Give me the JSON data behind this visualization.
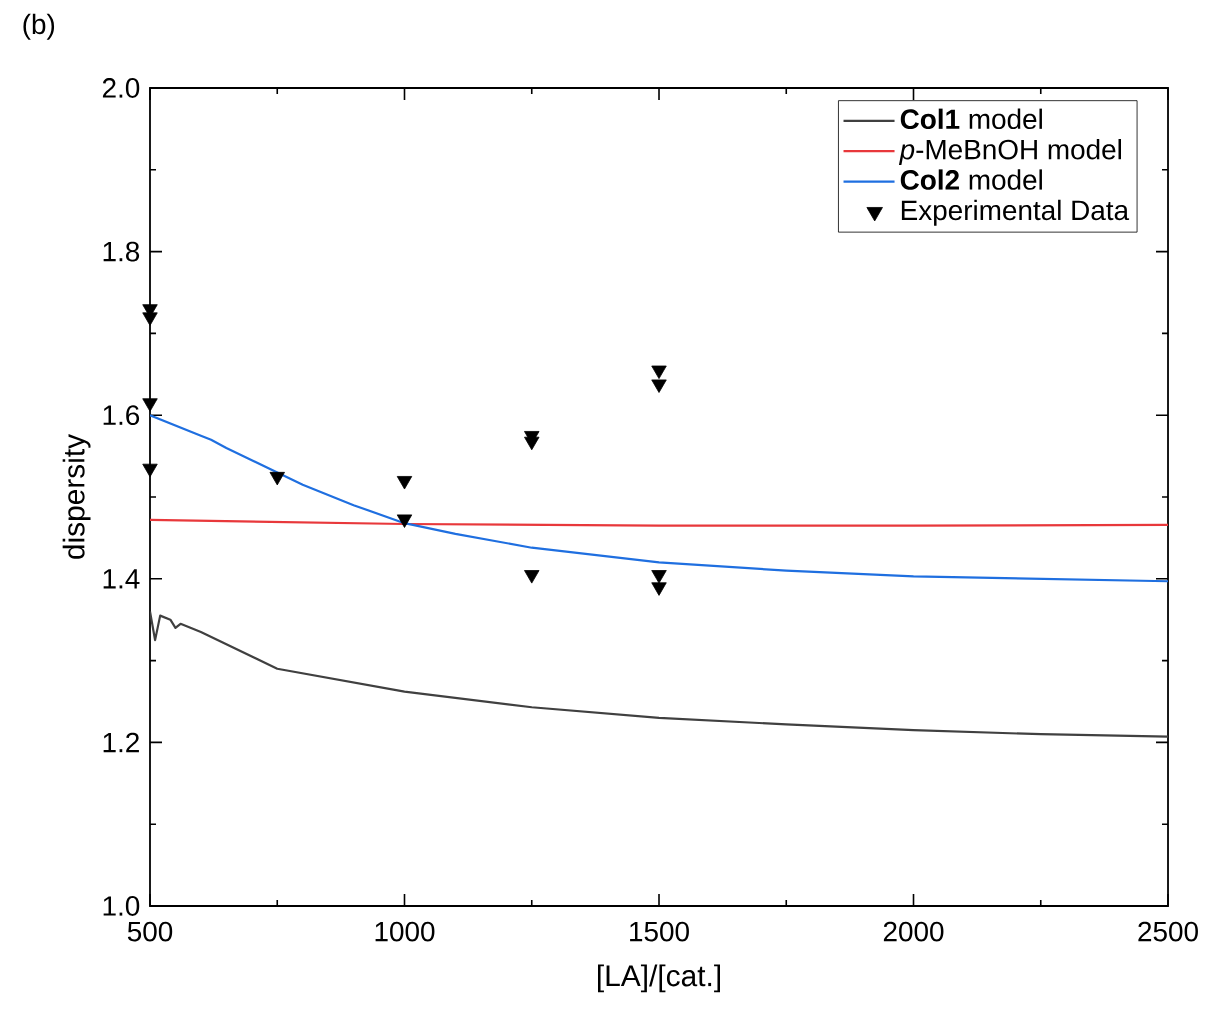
{
  "chart_data": {
    "type": "line",
    "xlabel": "[LA]/[cat.]",
    "ylabel": "dispersity",
    "annotations": [
      "(b)"
    ],
    "xlim": [
      500,
      2500
    ],
    "xticks": [
      500,
      1000,
      1500,
      2000,
      2500
    ],
    "ylim": [
      1.0,
      2.0
    ],
    "yticks": [
      {
        "value": 1.0,
        "label": "1.0"
      },
      {
        "value": 1.2,
        "label": "1.2"
      },
      {
        "value": 1.4,
        "label": "1.4"
      },
      {
        "value": 1.6,
        "label": "1.6"
      },
      {
        "value": 1.8,
        "label": "1.8"
      },
      {
        "value": 2.0,
        "label": "2.0"
      }
    ],
    "legend": "top right",
    "grid": false,
    "series": [
      {
        "name": "**Col1** model",
        "color": "#404040",
        "x": [
          500,
          510,
          520,
          540,
          550,
          560,
          600,
          750,
          1000,
          1250,
          1500,
          1750,
          2000,
          2250,
          2500
        ],
        "values": [
          1.36,
          1.325,
          1.355,
          1.35,
          1.34,
          1.345,
          1.335,
          1.29,
          1.262,
          1.243,
          1.23,
          1.222,
          1.215,
          1.21,
          1.207
        ]
      },
      {
        "name": "*p*-MeBnOH model",
        "color": "#e8383b",
        "x": [
          500,
          1000,
          1500,
          2000,
          2500
        ],
        "values": [
          1.472,
          1.467,
          1.465,
          1.465,
          1.466
        ]
      },
      {
        "name": "**Col2** model",
        "color": "#1f6fe0",
        "x": [
          500,
          600,
          620,
          650,
          700,
          800,
          900,
          1000,
          1100,
          1250,
          1500,
          1750,
          2000,
          2250,
          2500
        ],
        "values": [
          1.6,
          1.575,
          1.57,
          1.56,
          1.545,
          1.515,
          1.49,
          1.468,
          1.455,
          1.438,
          1.42,
          1.41,
          1.403,
          1.4,
          1.397
        ]
      },
      {
        "name": "Experimental Data",
        "type": "scatter",
        "marker": "triangle",
        "color": "#000000",
        "x": [
          500,
          500,
          500,
          500,
          750,
          1000,
          1000,
          1250,
          1250,
          1250,
          1500,
          1500,
          1500,
          1500
        ],
        "values": [
          1.73,
          1.72,
          1.615,
          1.535,
          1.525,
          1.52,
          1.473,
          1.575,
          1.568,
          1.405,
          1.655,
          1.638,
          1.405,
          1.39
        ]
      }
    ]
  }
}
